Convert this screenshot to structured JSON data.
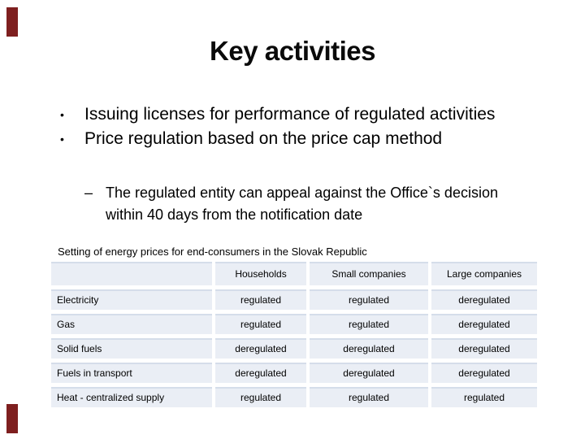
{
  "slide": {
    "title": "Key activities",
    "bullet_char": "•",
    "dash_char": "–",
    "bullets": [
      "Issuing licenses for performance of regulated activities",
      "Price regulation based on the price cap method"
    ],
    "sub_bullets": [
      "The regulated entity can appeal against the Office`s decision within 40 days from the notification date"
    ]
  },
  "table": {
    "caption": "Setting of energy prices for end-consumers in the Slovak Republic",
    "column_headers": [
      "Households",
      "Small companies",
      "Large companies"
    ],
    "rows": [
      {
        "label": "Electricity",
        "values": [
          "regulated",
          "regulated",
          "deregulated"
        ]
      },
      {
        "label": "Gas",
        "values": [
          "regulated",
          "regulated",
          "deregulated"
        ]
      },
      {
        "label": "Solid fuels",
        "values": [
          "deregulated",
          "deregulated",
          "deregulated"
        ]
      },
      {
        "label": "Fuels in transport",
        "values": [
          "deregulated",
          "deregulated",
          "deregulated"
        ]
      },
      {
        "label": "Heat - centralized supply",
        "values": [
          "regulated",
          "regulated",
          "regulated"
        ]
      }
    ]
  },
  "colors": {
    "background": "#ffffff",
    "text": "#000000",
    "table_band": "#eaeef5",
    "table_band_edge": "#d5ddea",
    "corner_accent": "#7e1f1f"
  }
}
